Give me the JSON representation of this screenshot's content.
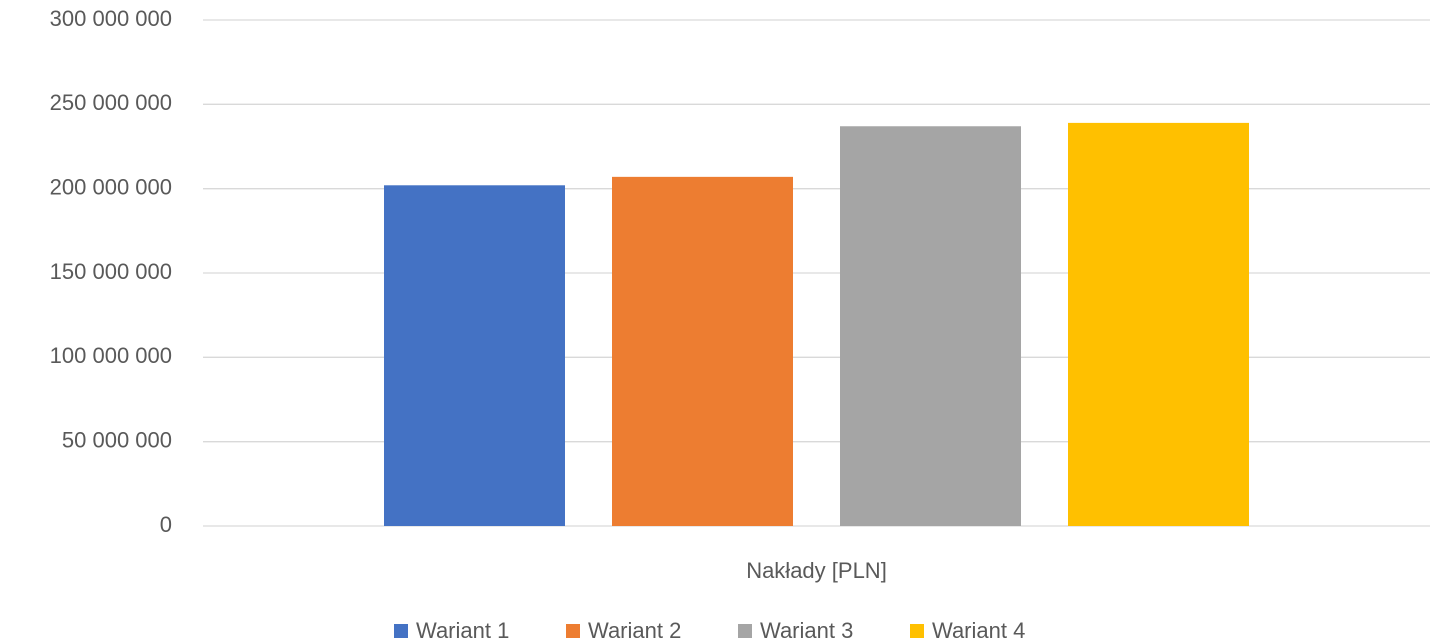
{
  "chart_data": {
    "type": "bar",
    "categories": [
      "Nakłady [PLN]"
    ],
    "series": [
      {
        "name": "Wariant 1",
        "color": "#4472c4",
        "values": [
          202000000
        ]
      },
      {
        "name": "Wariant 2",
        "color": "#ed7d31",
        "values": [
          207000000
        ]
      },
      {
        "name": "Wariant 3",
        "color": "#a5a5a5",
        "values": [
          237000000
        ]
      },
      {
        "name": "Wariant 4",
        "color": "#ffc000",
        "values": [
          239000000
        ]
      }
    ],
    "ylim": [
      0,
      300000000
    ],
    "yticks": [
      0,
      {
        "value": 50000000,
        "label": "50 000 000"
      },
      {
        "value": 100000000,
        "label": "100 000 000"
      },
      {
        "value": 150000000,
        "label": "150 000 000"
      },
      {
        "value": 200000000,
        "label": "200 000 000"
      },
      {
        "value": 250000000,
        "label": "250 000 000"
      },
      {
        "value": 300000000,
        "label": "300 000 000"
      }
    ],
    "grid": true,
    "legend": "bottom"
  }
}
